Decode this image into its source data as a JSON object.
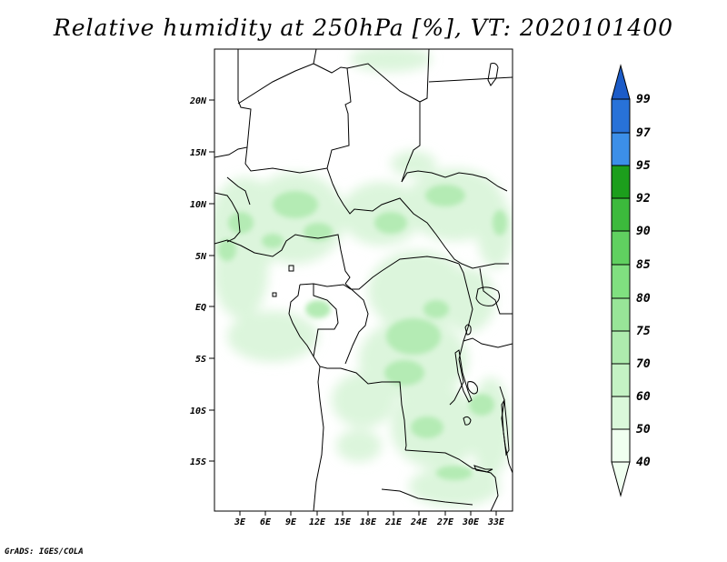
{
  "title": "Relative humidity at 250hPa [%], VT: 2020101400",
  "credit": "GrADS: IGES/COLA",
  "variable": "Relative humidity",
  "level": "250hPa",
  "units": "%",
  "valid_time": "2020101400",
  "y_ticks": [
    "20N",
    "15N",
    "10N",
    "5N",
    "EQ",
    "5S",
    "10S",
    "15S"
  ],
  "x_ticks": [
    "3E",
    "6E",
    "9E",
    "12E",
    "15E",
    "18E",
    "21E",
    "24E",
    "27E",
    "30E",
    "33E"
  ],
  "colorbar": {
    "levels": [
      "40",
      "50",
      "60",
      "70",
      "75",
      "80",
      "85",
      "90",
      "92",
      "95",
      "97",
      "99"
    ],
    "colors": [
      "#f0fff0",
      "#daf8da",
      "#c4f2c4",
      "#aeebae",
      "#98e598",
      "#80e080",
      "#60d060",
      "#3cba3c",
      "#1c9e1c",
      "#118a11",
      "#3c8fe8",
      "#2872d8",
      "#1c5cc8"
    ]
  }
}
